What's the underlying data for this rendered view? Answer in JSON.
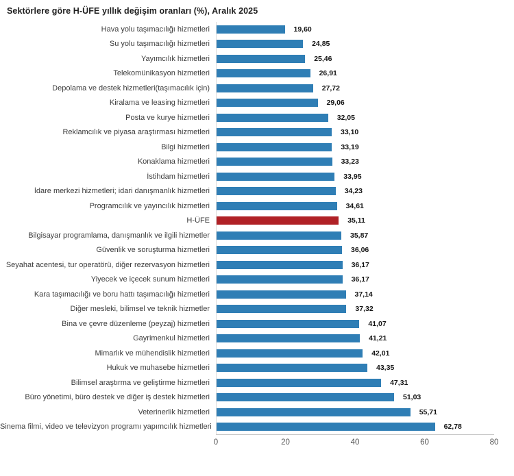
{
  "title": "Sektörlere göre H-ÜFE yıllık değişim oranları (%), Aralık 2025",
  "chart_data": {
    "type": "bar",
    "orientation": "horizontal",
    "title": "Sektörlere göre H-ÜFE yıllık değişim oranları (%), Aralık 2025",
    "categories": [
      "Hava yolu taşımacılığı hizmetleri",
      "Su yolu taşımacılığı hizmetleri",
      "Yayımcılık hizmetleri",
      "Telekomünikasyon hizmetleri",
      "Depolama ve destek hizmetleri(taşımacılık için)",
      "Kiralama ve leasing hizmetleri",
      "Posta ve kurye hizmetleri",
      "Reklamcılık ve piyasa araştırması hizmetleri",
      "Bilgi hizmetleri",
      "Konaklama hizmetleri",
      "İstihdam hizmetleri",
      "İdare merkezi hizmetleri; idari danışmanlık hizmetleri",
      "Programcılık ve yayıncılık hizmetleri",
      "H-ÜFE",
      "Bilgisayar programlama, danışmanlık ve ilgili hizmetler",
      "Güvenlik ve soruşturma hizmetleri",
      "Seyahat acentesi, tur operatörü, diğer rezervasyon hizmetleri",
      "Yiyecek ve içecek sunum hizmetleri",
      "Kara taşımacılığı ve boru hattı taşımacılığı hizmetleri",
      "Diğer mesleki, bilimsel ve teknik hizmetler",
      "Bina ve çevre düzenleme (peyzaj) hizmetleri",
      "Gayrimenkul hizmetleri",
      "Mimarlık ve mühendislik hizmetleri",
      "Hukuk ve muhasebe hizmetleri",
      "Bilimsel araştırma ve geliştirme hizmetleri",
      "Büro yönetimi, büro destek ve diğer iş destek hizmetleri",
      "Veterinerlik hizmetleri",
      "Sinema filmi, video ve televizyon programı yapımcılık hizmetleri"
    ],
    "values": [
      19.6,
      24.85,
      25.46,
      26.91,
      27.72,
      29.06,
      32.05,
      33.1,
      33.19,
      33.23,
      33.95,
      34.23,
      34.61,
      35.11,
      35.87,
      36.06,
      36.17,
      36.17,
      37.14,
      37.32,
      41.07,
      41.21,
      42.01,
      43.35,
      47.31,
      51.03,
      55.71,
      62.78
    ],
    "value_labels": [
      "19,60",
      "24,85",
      "25,46",
      "26,91",
      "27,72",
      "29,06",
      "32,05",
      "33,10",
      "33,19",
      "33,23",
      "33,95",
      "34,23",
      "34,61",
      "35,11",
      "35,87",
      "36,06",
      "36,17",
      "36,17",
      "37,14",
      "37,32",
      "41,07",
      "41,21",
      "42,01",
      "43,35",
      "47,31",
      "51,03",
      "55,71",
      "62,78"
    ],
    "highlight_category": "H-ÜFE",
    "highlight_index": 13,
    "bar_color": "#2f7eb5",
    "highlight_color": "#b02126",
    "xlabel": "",
    "ylabel": "",
    "xlim": [
      0,
      80
    ],
    "x_ticks": [
      "0",
      "20",
      "40",
      "60",
      "80"
    ],
    "grid": false,
    "legend": false
  }
}
